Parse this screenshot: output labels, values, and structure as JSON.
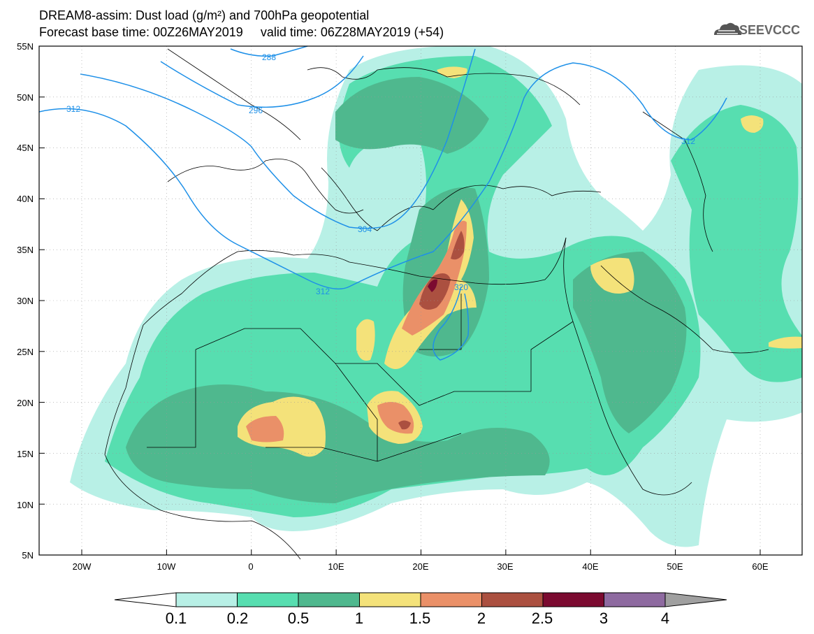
{
  "title": {
    "line1": "DREAM8-assim: Dust load (g/m²) and 700hPa geopotential",
    "line2": "Forecast base time: 00Z26MAY2019     valid time: 06Z28MAY2019 (+54)"
  },
  "logo": {
    "text": "SEEVCCC",
    "icon": "cloud-icon"
  },
  "axes": {
    "lat_labels": [
      "55N",
      "50N",
      "45N",
      "40N",
      "35N",
      "30N",
      "25N",
      "20N",
      "15N",
      "10N",
      "5N"
    ],
    "lon_labels": [
      "20W",
      "10W",
      "0",
      "10E",
      "20E",
      "30E",
      "40E",
      "50E",
      "60E"
    ]
  },
  "contours": {
    "labels": [
      "288",
      "296",
      "312",
      "312",
      "304",
      "312",
      "320"
    ]
  },
  "colorbar": {
    "levels": [
      "0.1",
      "0.2",
      "0.5",
      "1",
      "1.5",
      "2",
      "2.5",
      "3",
      "4"
    ],
    "colors": [
      "#b8f0e6",
      "#57deb0",
      "#4fb88e",
      "#f4e27a",
      "#ea9068",
      "#ab5040",
      "#7b0a30",
      "#8e6aa0",
      "#a0a0a0"
    ]
  },
  "palette": {
    "background": "#ffffff",
    "land_dust_low": "#b8f0e6",
    "contour": "#1e90e8"
  }
}
